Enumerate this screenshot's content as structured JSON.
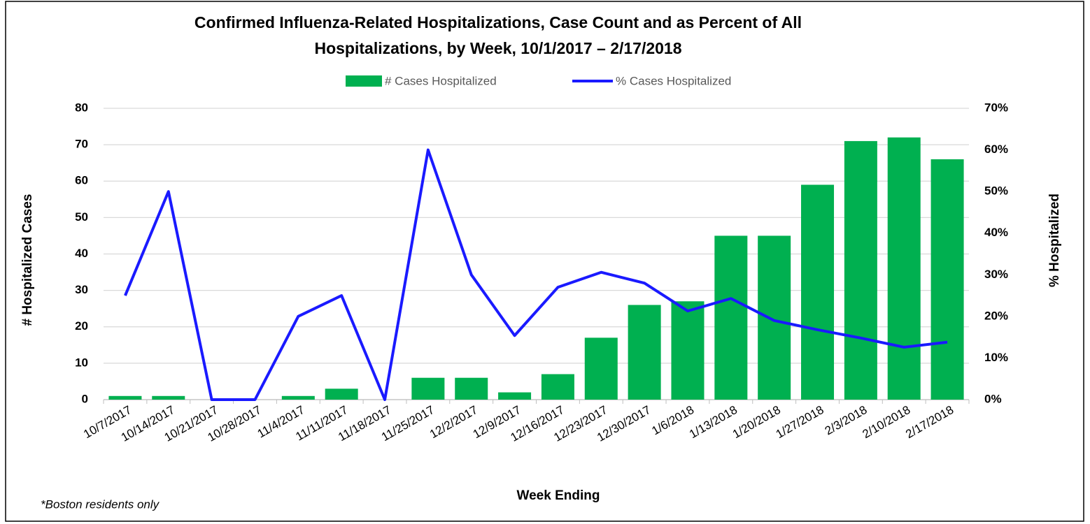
{
  "chart_data": {
    "type": "combo",
    "title": [
      "Confirmed Influenza-Related Hospitalizations, Case Count and as Percent of All",
      "Hospitalizations, by Week, 10/1/2017 – 2/17/2018"
    ],
    "x_label": "Week Ending",
    "y_label": "# Hospitalized Cases",
    "y2_label": "% Hospitalized",
    "footnote": "*Boston residents only",
    "categories": [
      "10/7/2017",
      "10/14/2017",
      "10/21/2017",
      "10/28/2017",
      "11/4/2017",
      "11/11/2017",
      "11/18/2017",
      "11/25/2017",
      "12/2/2017",
      "12/9/2017",
      "12/16/2017",
      "12/23/2017",
      "12/30/2017",
      "1/6/2018",
      "1/13/2018",
      "1/20/2018",
      "1/27/2018",
      "2/3/2018",
      "2/10/2018",
      "2/17/2018"
    ],
    "series": [
      {
        "name": "# Cases Hospitalized",
        "type": "bar",
        "color": "#00b050",
        "values": [
          1,
          1,
          0,
          0,
          1,
          3,
          0,
          6,
          6,
          2,
          7,
          17,
          26,
          27,
          45,
          45,
          59,
          71,
          72,
          66
        ]
      },
      {
        "name": "% Cases Hospitalized",
        "type": "line",
        "axis": "y2",
        "color": "#1a1aff",
        "values": [
          25,
          50,
          0,
          0,
          20,
          25,
          0,
          60,
          30,
          15.4,
          27,
          30.6,
          28,
          21.3,
          24.3,
          19,
          16.8,
          14.8,
          12.6,
          13.8
        ]
      }
    ],
    "ylim": [
      0,
      80
    ],
    "yticks": [
      0,
      10,
      20,
      30,
      40,
      50,
      60,
      70,
      80
    ],
    "y2lim": [
      0,
      70
    ],
    "y2ticks": [
      {
        "value": 0,
        "label": "0%"
      },
      {
        "value": 10,
        "label": "10%"
      },
      {
        "value": 20,
        "label": "20%"
      },
      {
        "value": 30,
        "label": "30%"
      },
      {
        "value": 40,
        "label": "40%"
      },
      {
        "value": 50,
        "label": "50%"
      },
      {
        "value": 60,
        "label": "60%"
      },
      {
        "value": 70,
        "label": "70%"
      }
    ],
    "grid": true,
    "legend": "top"
  }
}
